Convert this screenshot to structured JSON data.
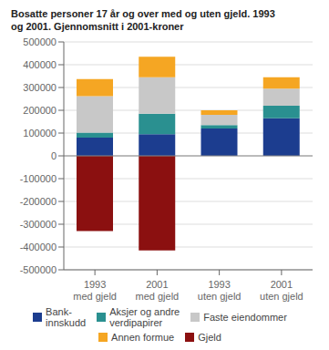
{
  "chart_data": {
    "type": "bar",
    "title": "Bosatte personer 17 år og over med og uten gjeld. 1993\nog 2001. Gjennomsnitt i 2001-kroner",
    "categories": [
      "1993\nmed gjeld",
      "2001\nmed gjeld",
      "1993\nuten gjeld",
      "2001\nuten gjeld"
    ],
    "series": [
      {
        "name": "Bank-\ninnskudd",
        "color": "#1c3d8f",
        "values": [
          80000,
          95000,
          120000,
          165000
        ]
      },
      {
        "name": "Aksjer og andre\nverdipapirer",
        "color": "#2a9090",
        "values": [
          22000,
          90000,
          15000,
          55000
        ]
      },
      {
        "name": "Faste eiendommer",
        "color": "#c8c8c8",
        "values": [
          160000,
          160000,
          45000,
          75000
        ]
      },
      {
        "name": "Annen formue",
        "color": "#f5a623",
        "values": [
          75000,
          90000,
          20000,
          50000
        ]
      },
      {
        "name": "Gjeld",
        "color": "#8b1010",
        "values": [
          -330000,
          -415000,
          0,
          0
        ]
      }
    ],
    "ylim": [
      -500000,
      500000
    ],
    "yticks": [
      -500000,
      -400000,
      -300000,
      -200000,
      -100000,
      0,
      100000,
      200000,
      300000,
      400000,
      500000
    ],
    "stacked": true,
    "grid": true,
    "legend": "bottom"
  }
}
